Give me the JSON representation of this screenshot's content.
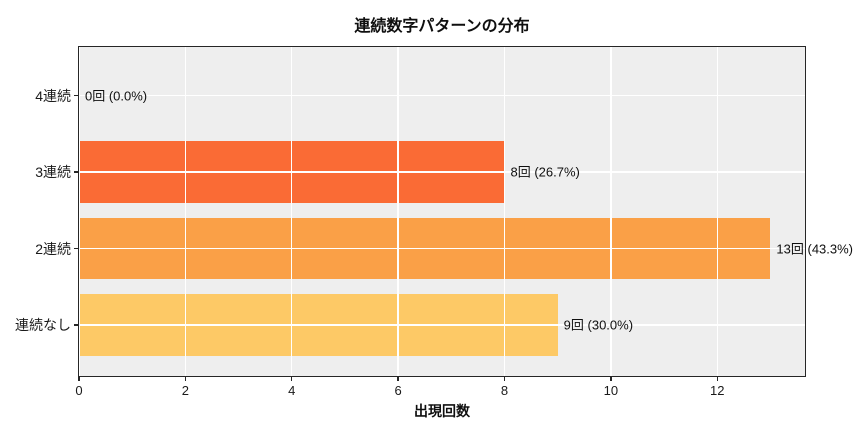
{
  "chart_data": {
    "type": "bar",
    "orientation": "horizontal",
    "title": "連続数字パターンの分布",
    "xlabel": "出現回数",
    "ylabel": "",
    "categories": [
      "4連続",
      "3連続",
      "2連続",
      "連続なし"
    ],
    "values": [
      0,
      8,
      13,
      9
    ],
    "bar_labels": [
      "0回 (0.0%)",
      "8回 (26.7%)",
      "13回 (43.3%)",
      "9回 (30.0%)"
    ],
    "bar_colors": [
      null,
      "#fa6b35",
      "#faa047",
      "#fdc966"
    ],
    "x_ticks": [
      0,
      2,
      4,
      6,
      8,
      10,
      12
    ],
    "xlim": [
      0,
      13.65
    ],
    "grid": true,
    "grid_color": "#ffffff",
    "axes_background": "#eeeeee",
    "legend": "none"
  }
}
